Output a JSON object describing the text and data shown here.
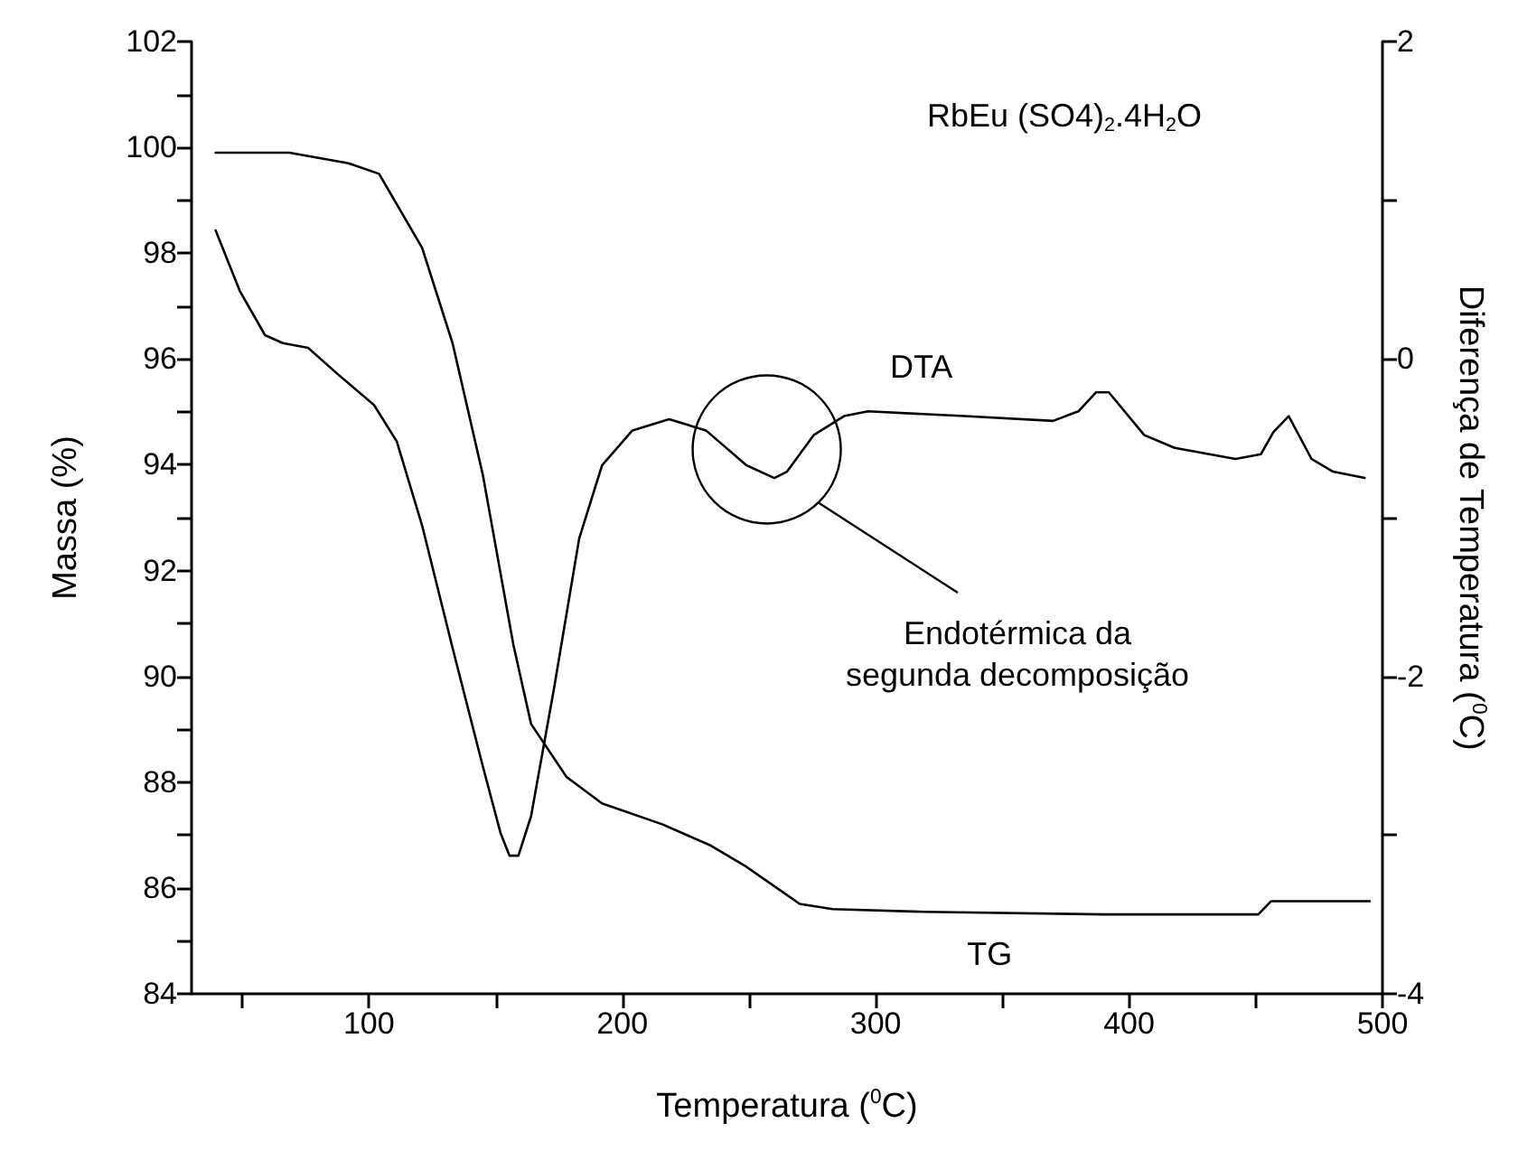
{
  "chart_data": {
    "type": "line",
    "title": "RbEu (SO4)$_{2}$.4H$_{2}$O",
    "xlabel": "Temperatura ($^{0}$C)",
    "ylabel": "Massa (%)",
    "y2label": "Diferença de Temperatura ($^{0}$C)",
    "annotations": [
      "Endotérmica da\nsegunda decomposição"
    ],
    "xlim": [
      30,
      500
    ],
    "xticks": [
      {
        "value": 50,
        "label": null
      },
      100,
      {
        "value": 150,
        "label": null
      },
      200,
      {
        "value": 250,
        "label": null
      },
      300,
      {
        "value": 350,
        "label": null
      },
      400,
      {
        "value": 450,
        "label": null
      },
      500
    ],
    "ylim": [
      84,
      102
    ],
    "yticks": [
      84,
      {
        "value": 85,
        "label": null
      },
      86,
      {
        "value": 87,
        "label": null
      },
      88,
      {
        "value": 89,
        "label": null
      },
      90,
      {
        "value": 91,
        "label": null
      },
      92,
      {
        "value": 93,
        "label": null
      },
      94,
      {
        "value": 95,
        "label": null
      },
      96,
      {
        "value": 97,
        "label": null
      },
      98,
      {
        "value": 99,
        "label": null
      },
      100,
      {
        "value": 101,
        "label": null
      },
      102
    ],
    "y2lim": [
      -4,
      2
    ],
    "y2ticks": [
      -4,
      {
        "value": -3,
        "label": null
      },
      -2,
      {
        "value": -1,
        "label": null
      },
      0,
      {
        "value": 1,
        "label": null
      },
      2
    ],
    "grid": false,
    "legend": false,
    "marker": "none",
    "line_style": "solid",
    "series": [
      {
        "name": "TG",
        "color": "#000000",
        "x": [
          39.5,
          68.6,
          92,
          104,
          121,
          133,
          145,
          157,
          164,
          178,
          192,
          216,
          235,
          249,
          261,
          270,
          283,
          319,
          390,
          451,
          456,
          495
        ],
        "values": [
          99.9,
          99.9,
          99.7,
          99.5,
          98.1,
          96.3,
          93.8,
          90.6,
          89.1,
          88.1,
          87.6,
          87.2,
          86.8,
          86.4,
          86.0,
          85.7,
          85.6,
          85.55,
          85.5,
          85.5,
          85.75,
          85.75
        ]
      },
      {
        "name": "DTA",
        "color": "#000000",
        "axis": "y2",
        "x": [
          39.5,
          49,
          59,
          66,
          76,
          88,
          102,
          111,
          121,
          133,
          145,
          152,
          155.5,
          159,
          164,
          173,
          183,
          192,
          204,
          218.5,
          233,
          249,
          260,
          265,
          275.5,
          287.5,
          297,
          335,
          370,
          380,
          387,
          392,
          406,
          418,
          442,
          452,
          457,
          463,
          472,
          480.5,
          493
        ],
        "values": [
          0.81,
          0.43,
          0.15,
          0.1,
          0.07,
          -0.1,
          -0.29,
          -0.52,
          -1.05,
          -1.82,
          -2.57,
          -2.99,
          -3.13,
          -3.13,
          -2.88,
          -2.08,
          -1.13,
          -0.67,
          -0.45,
          -0.38,
          -0.45,
          -0.67,
          -0.75,
          -0.71,
          -0.48,
          -0.36,
          -0.33,
          -0.36,
          -0.39,
          -0.33,
          -0.21,
          -0.21,
          -0.48,
          -0.56,
          -0.63,
          -0.6,
          -0.46,
          -0.36,
          -0.63,
          -0.71,
          -0.75
        ]
      }
    ]
  }
}
